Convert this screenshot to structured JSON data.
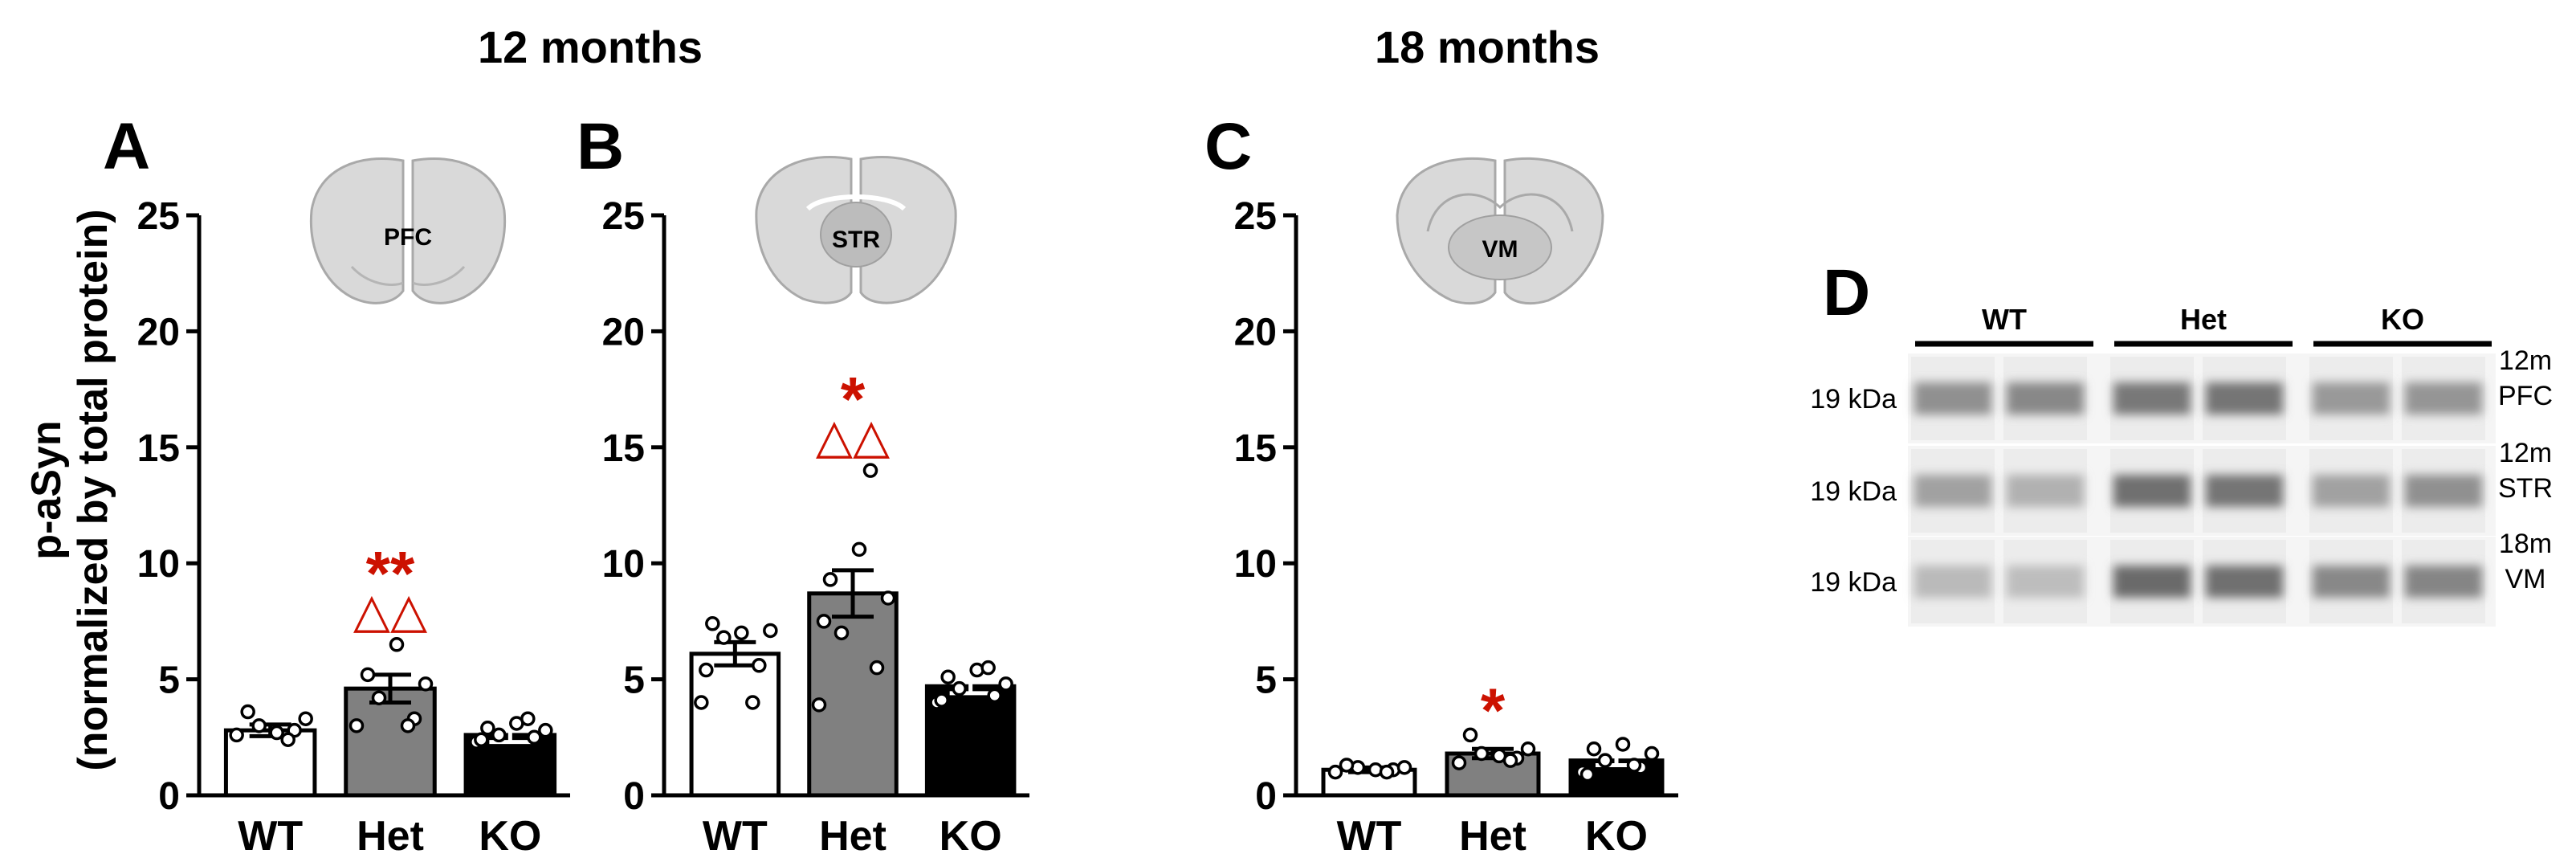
{
  "headers": {
    "months12": "12 months",
    "months18": "18 months"
  },
  "y_axis_label": {
    "line1": "p-aSyn",
    "line2": "(normalized by total protein)"
  },
  "colors": {
    "wt": "#ffffff",
    "het": "#808080",
    "ko": "#000000",
    "significance": "#cc1100",
    "brain": "#d8d8d8"
  },
  "chart_data": [
    {
      "type": "bar",
      "panel": "A",
      "region": "PFC",
      "age": "12 months",
      "categories": [
        "WT",
        "Het",
        "KO"
      ],
      "values": [
        2.8,
        4.6,
        2.6
      ],
      "sem": [
        0.25,
        0.6,
        0.3
      ],
      "ylim": [
        0,
        25
      ],
      "yticks": [
        "0",
        "5",
        "10",
        "15",
        "20",
        "25"
      ],
      "ylabel": "p-aSyn (normalized by total protein)",
      "points": [
        [
          2.6,
          2.8,
          3.0,
          3.3,
          3.6,
          2.7,
          2.4
        ],
        [
          3.0,
          3.3,
          4.2,
          4.8,
          5.2,
          6.5,
          3.0
        ],
        [
          2.3,
          2.5,
          2.6,
          2.8,
          2.9,
          3.1,
          3.3,
          2.4
        ]
      ],
      "significance": {
        "category": "Het",
        "asterisks": "**",
        "triangles": "△△"
      }
    },
    {
      "type": "bar",
      "panel": "B",
      "region": "STR",
      "age": "12 months",
      "categories": [
        "WT",
        "Het",
        "KO"
      ],
      "values": [
        6.1,
        8.7,
        4.7
      ],
      "sem": [
        0.5,
        1.0,
        0.3
      ],
      "ylim": [
        0,
        25
      ],
      "yticks": [
        "0",
        "5",
        "10",
        "15",
        "20",
        "25"
      ],
      "ylabel": "",
      "points": [
        [
          4.0,
          5.6,
          6.8,
          7.1,
          7.4,
          7.0,
          4.0,
          5.4
        ],
        [
          3.9,
          5.5,
          7.0,
          8.5,
          9.3,
          10.6,
          14.0,
          7.5
        ],
        [
          4.0,
          4.3,
          4.6,
          4.8,
          5.1,
          5.4,
          5.5,
          4.1
        ]
      ],
      "significance": {
        "category": "Het",
        "asterisks": "*",
        "triangles": "△△"
      }
    },
    {
      "type": "bar",
      "panel": "C",
      "region": "VM",
      "age": "18 months",
      "categories": [
        "WT",
        "Het",
        "KO"
      ],
      "values": [
        1.1,
        1.8,
        1.5
      ],
      "sem": [
        0.1,
        0.2,
        0.2
      ],
      "ylim": [
        0,
        25
      ],
      "yticks": [
        "0",
        "5",
        "10",
        "15",
        "20",
        "25"
      ],
      "ylabel": "",
      "points": [
        [
          1.0,
          1.1,
          1.2,
          1.2,
          1.3,
          1.1,
          1.0
        ],
        [
          1.4,
          1.6,
          1.8,
          2.0,
          2.6,
          1.7,
          1.5
        ],
        [
          1.0,
          1.2,
          1.5,
          1.8,
          2.0,
          2.2,
          1.3,
          0.9
        ]
      ],
      "significance": {
        "category": "Het",
        "asterisks": "*",
        "triangles": ""
      }
    }
  ],
  "western_blot": {
    "panel": "D",
    "groups": [
      "WT",
      "Het",
      "KO"
    ],
    "rows": [
      {
        "marker": "19 kDa",
        "age": "12m",
        "region": "PFC",
        "intensities": [
          0.55,
          0.6,
          0.7,
          0.72,
          0.5,
          0.52
        ]
      },
      {
        "marker": "19 kDa",
        "age": "12m",
        "region": "STR",
        "intensities": [
          0.45,
          0.35,
          0.75,
          0.72,
          0.45,
          0.55
        ]
      },
      {
        "marker": "19 kDa",
        "age": "18m",
        "region": "VM",
        "intensities": [
          0.3,
          0.28,
          0.78,
          0.75,
          0.6,
          0.62
        ]
      }
    ]
  }
}
